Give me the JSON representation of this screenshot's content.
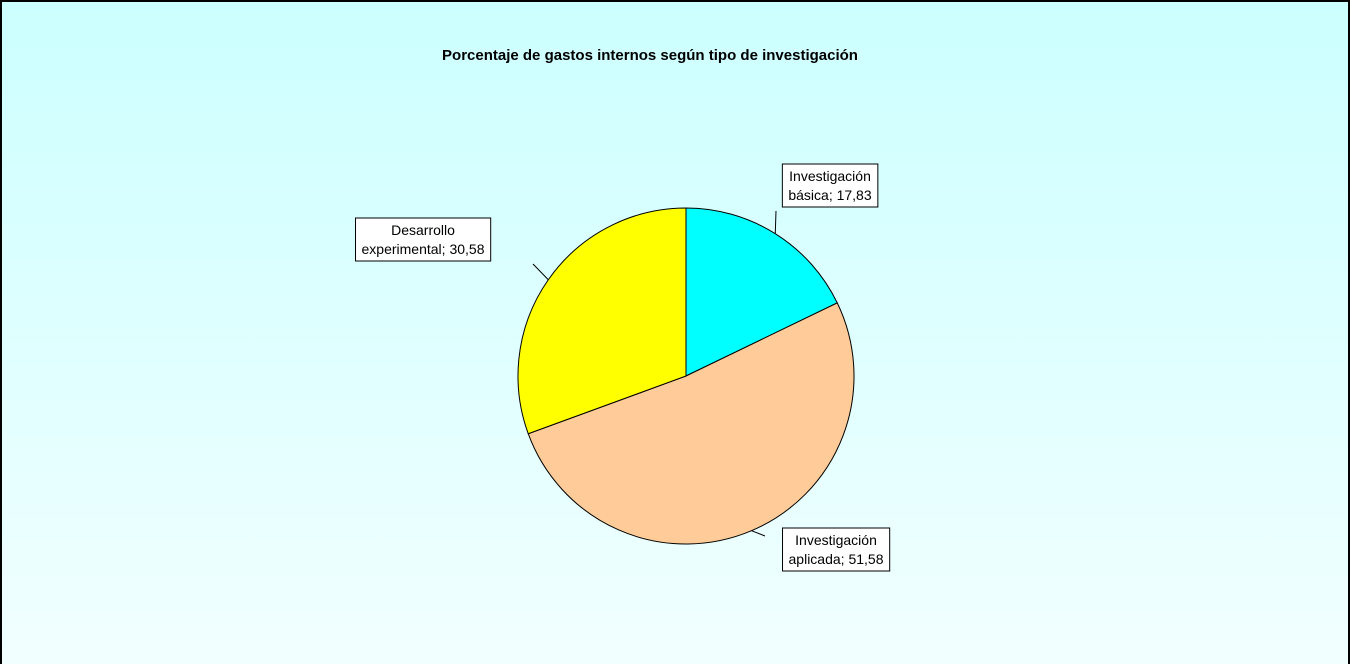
{
  "chart_data": {
    "type": "pie",
    "title": "Porcentaje de gastos internos según tipo de investigación",
    "values": [
      17.83,
      51.58,
      30.58
    ],
    "value_labels": [
      "Investigación básica; 17,83",
      "Investigación aplicada; 51,58",
      "Desarrollo experimental; 30,58"
    ],
    "colors": [
      "#00ffff",
      "#ffcc99",
      "#ffff00"
    ]
  }
}
